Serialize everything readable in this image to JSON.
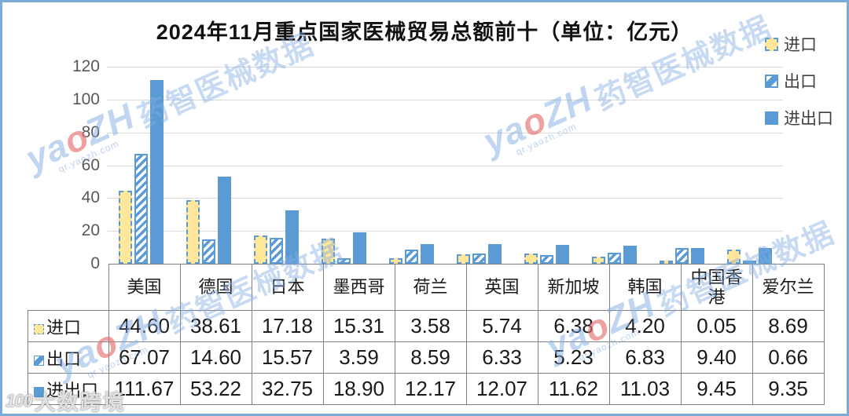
{
  "title": "2024年11月重点国家医械贸易总额前十（单位：亿元）",
  "legend": [
    {
      "key": "import",
      "label": "进口"
    },
    {
      "key": "export",
      "label": "出口"
    },
    {
      "key": "total",
      "label": "进出口"
    }
  ],
  "chart_data": {
    "type": "bar",
    "title": "2024年11月重点国家医械贸易总额前十（单位：亿元）",
    "unit": "亿元",
    "categories": [
      "美国",
      "德国",
      "日本",
      "墨西哥",
      "荷兰",
      "英国",
      "新加坡",
      "韩国",
      "中国香港",
      "爱尔兰"
    ],
    "series": [
      {
        "name": "进口",
        "key": "import",
        "values": [
          "44.60",
          "38.61",
          "17.18",
          "15.31",
          "3.58",
          "5.74",
          "6.38",
          "4.20",
          "0.05",
          "8.69"
        ]
      },
      {
        "name": "出口",
        "key": "export",
        "values": [
          "67.07",
          "14.60",
          "15.57",
          "3.59",
          "8.59",
          "6.33",
          "5.23",
          "6.83",
          "9.40",
          "0.66"
        ]
      },
      {
        "name": "进出口",
        "key": "total",
        "values": [
          "111.67",
          "53.22",
          "32.75",
          "18.90",
          "12.17",
          "12.07",
          "11.62",
          "11.03",
          "9.45",
          "9.35"
        ]
      }
    ],
    "ylim": [
      0,
      120
    ],
    "yticks": [
      0,
      20,
      40,
      60,
      80,
      100,
      120
    ],
    "grid": true,
    "legend_position": "top-right"
  },
  "colors": {
    "bar_blue": "#5B9BD5",
    "bar_yellow": "#FFE699",
    "gridline": "#D9D9D9",
    "table_border": "#7f7f7f",
    "frame_border": "#79abd6",
    "axis_text": "#595959"
  },
  "watermark": {
    "brand_part1": "ya",
    "brand_dot": "o",
    "brand_part2": "ZH",
    "text": "药智医械数据",
    "site": "qr.yaozh.com"
  },
  "corner_watermark": {
    "logo": "100",
    "text": "大数跨境"
  }
}
